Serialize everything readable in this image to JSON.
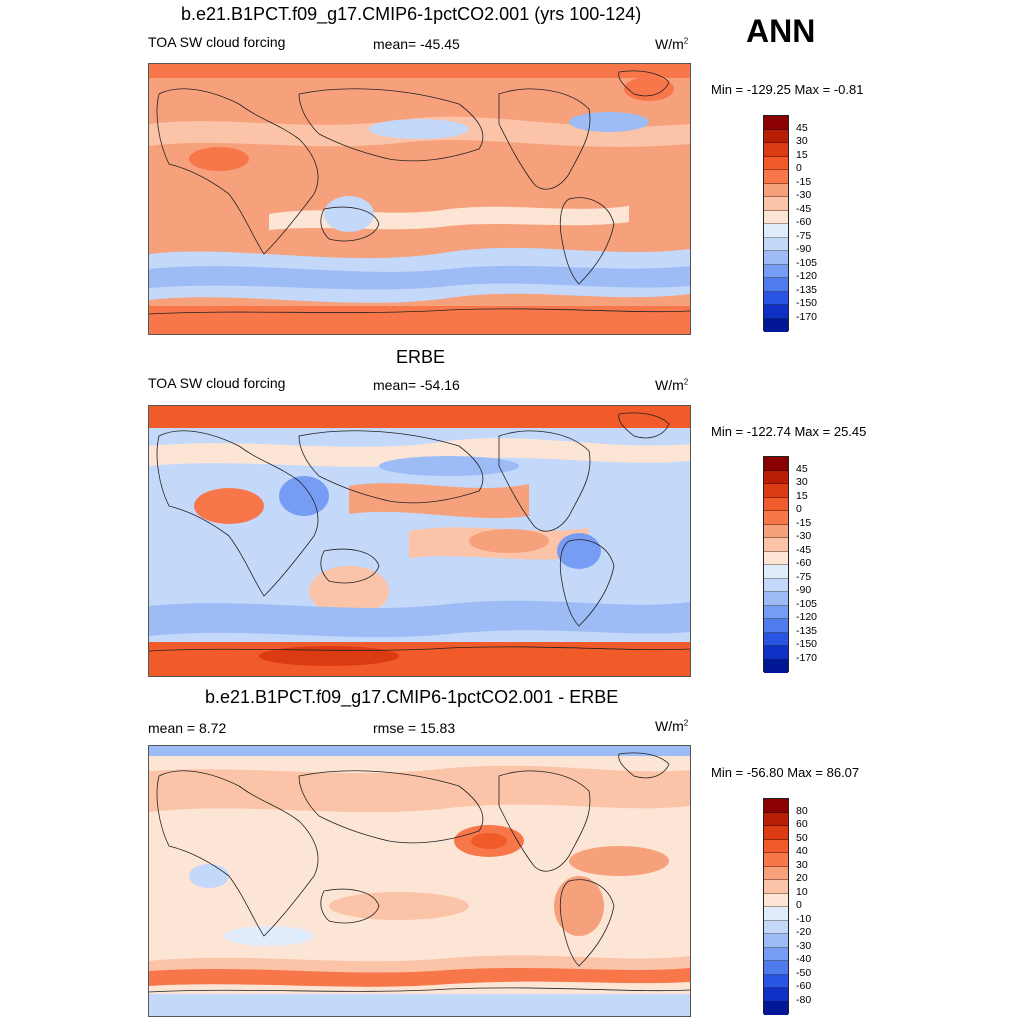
{
  "season": "ANN",
  "panels": [
    {
      "title": "b.e21.B1PCT.f09_g17.CMIP6-1pctCO2.001 (yrs 100-124)",
      "left_label": "TOA SW cloud forcing",
      "center_label": "mean= -45.45",
      "units": "W/m",
      "units_sup": "2",
      "minmax": "Min = -129.25 Max =  -0.81",
      "colorbar_levels": [
        "45",
        "30",
        "15",
        "0",
        "-15",
        "-30",
        "-45",
        "-60",
        "-75",
        "-90",
        "-105",
        "-120",
        "-135",
        "-150",
        "-170"
      ],
      "colorbar_colors": [
        "#8b0000",
        "#b81d06",
        "#dc3a12",
        "#f15b2a",
        "#f7774b",
        "#f7a07c",
        "#fbc3a7",
        "#fde5d6",
        "#e1ecfb",
        "#c4d8f9",
        "#9dbcf6",
        "#769df3",
        "#4e7bee",
        "#2a55e2",
        "#0f30c5",
        "#021795"
      ],
      "colorbar": "sw-model"
    },
    {
      "title": "ERBE",
      "left_label": "TOA SW cloud forcing",
      "center_label": "mean= -54.16",
      "units": "W/m",
      "units_sup": "2",
      "minmax": "Min = -122.74 Max =  25.45",
      "colorbar_levels": [
        "45",
        "30",
        "15",
        "0",
        "-15",
        "-30",
        "-45",
        "-60",
        "-75",
        "-90",
        "-105",
        "-120",
        "-135",
        "-150",
        "-170"
      ],
      "colorbar_colors": [
        "#8b0000",
        "#b81d06",
        "#dc3a12",
        "#f15b2a",
        "#f7774b",
        "#f7a07c",
        "#fbc3a7",
        "#fde5d6",
        "#e1ecfb",
        "#c4d8f9",
        "#9dbcf6",
        "#769df3",
        "#4e7bee",
        "#2a55e2",
        "#0f30c5",
        "#021795"
      ],
      "colorbar": "sw-obs"
    },
    {
      "title": "b.e21.B1PCT.f09_g17.CMIP6-1pctCO2.001 - ERBE",
      "left_label": "mean =   8.72",
      "center_label": "rmse =  15.83",
      "units": "W/m",
      "units_sup": "2",
      "minmax": "Min = -56.80 Max =  86.07",
      "colorbar_levels": [
        "80",
        "60",
        "50",
        "40",
        "30",
        "20",
        "10",
        "0",
        "-10",
        "-20",
        "-30",
        "-40",
        "-50",
        "-60",
        "-80"
      ],
      "colorbar_colors": [
        "#8b0000",
        "#b81d06",
        "#dc3a12",
        "#f15b2a",
        "#f7774b",
        "#f7a07c",
        "#fbc3a7",
        "#fde5d6",
        "#e1ecfb",
        "#c4d8f9",
        "#9dbcf6",
        "#769df3",
        "#4e7bee",
        "#2a55e2",
        "#0f30c5",
        "#021795"
      ],
      "colorbar": "diff"
    }
  ]
}
